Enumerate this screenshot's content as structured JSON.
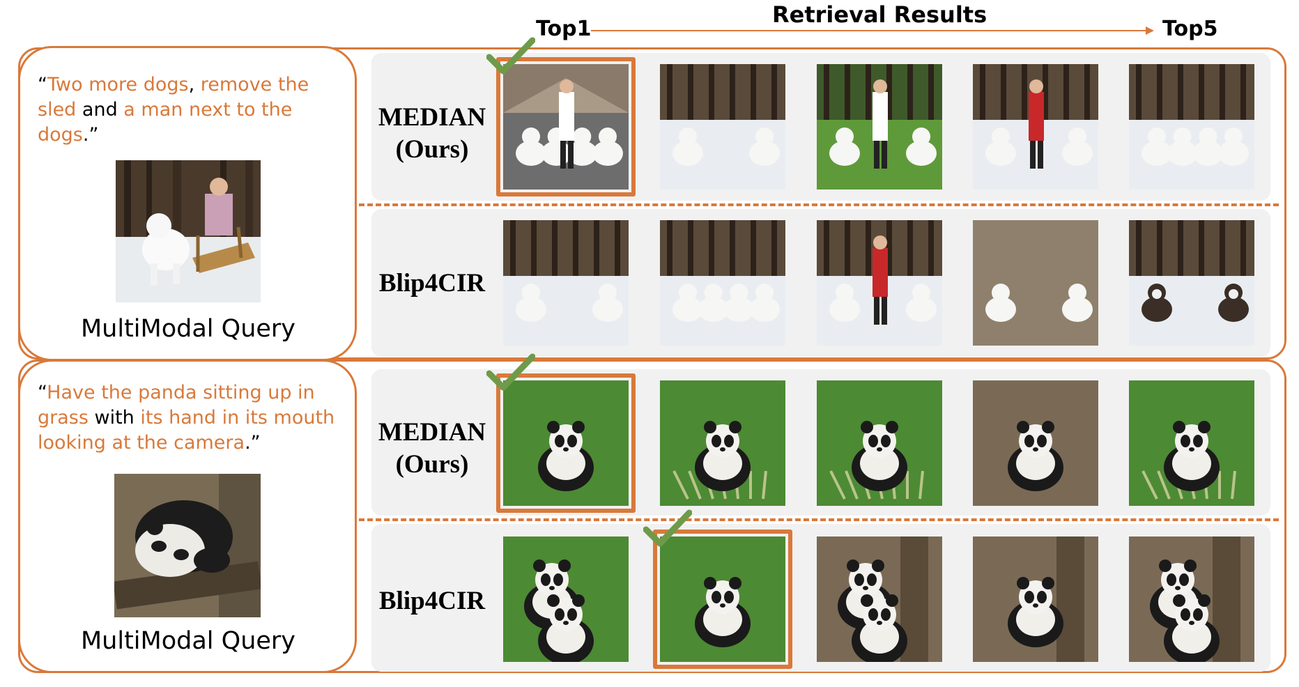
{
  "header": {
    "title": "Retrieval Results",
    "top_first": "Top1",
    "top_last": "Top5"
  },
  "colors": {
    "accent": "#d9793a",
    "check": "#6f9a4a",
    "panel": "#f1f1f1"
  },
  "queries": [
    {
      "text_parts": [
        {
          "t": "“",
          "hl": false
        },
        {
          "t": "Two more dogs",
          "hl": true
        },
        {
          "t": ", ",
          "hl": false
        },
        {
          "t": "remove the sled",
          "hl": true
        },
        {
          "t": " and ",
          "hl": false
        },
        {
          "t": "a man next to the dogs",
          "hl": true
        },
        {
          "t": ".”",
          "hl": false
        }
      ],
      "label": "MultiModal Query",
      "image": "samoyed-pulling-sled-with-child-in-snowy-forest",
      "rows": [
        {
          "method": [
            "MEDIAN",
            "(Ours)"
          ],
          "correct_rank": 1,
          "results": [
            "man-with-three-samoyeds-in-driveway",
            "two-white-samoyeds-in-snow",
            "child-with-samoyeds-on-grass",
            "woman-in-red-jacket-with-dogs-in-snow",
            "sled-dog-team-running"
          ]
        },
        {
          "method": [
            "Blip4CIR"
          ],
          "correct_rank": 0,
          "results": [
            "two-white-samoyeds-in-snow",
            "sled-dog-team-in-forest",
            "woman-in-red-jacket-with-dogs-in-snow",
            "two-samoyeds-on-dirt",
            "husky-sled-dogs-in-snow"
          ]
        }
      ]
    },
    {
      "text_parts": [
        {
          "t": "“",
          "hl": false
        },
        {
          "t": "Have the panda sitting up in grass",
          "hl": true
        },
        {
          "t": " with ",
          "hl": false
        },
        {
          "t": "its hand in its mouth looking at the camera",
          "hl": true
        },
        {
          "t": ".”",
          "hl": false
        }
      ],
      "label": "MultiModal Query",
      "image": "panda-lying-on-log",
      "rows": [
        {
          "method": [
            "MEDIAN",
            "(Ours)"
          ],
          "correct_rank": 1,
          "results": [
            "panda-sitting-in-grass-hand-in-mouth",
            "panda-eating-bamboo",
            "panda-lying-in-bamboo",
            "panda-eating-on-ground",
            "panda-close-up-with-bamboo"
          ]
        },
        {
          "method": [
            "Blip4CIR"
          ],
          "correct_rank": 2,
          "results": [
            "two-pandas-cuddling-on-grass",
            "panda-sitting-in-grass-hand-in-mouth",
            "two-pandas-by-tree",
            "panda-resting-on-log",
            "two-pandas-by-tree-trunk"
          ]
        }
      ]
    }
  ]
}
